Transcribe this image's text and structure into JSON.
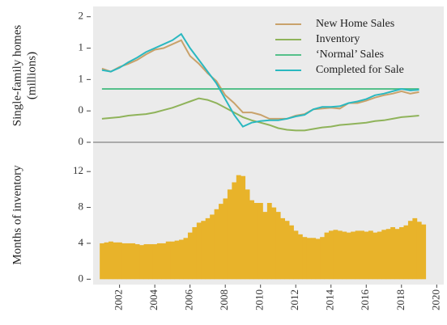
{
  "chart_data": [
    {
      "type": "line",
      "ylabel": [
        "Single-family homes",
        "(millions)"
      ],
      "legend": "top-right",
      "xlim": [
        2000.5,
        2020.4
      ],
      "ylim": [
        0,
        1.7
      ],
      "yticks": [
        {
          "value": 0,
          "label": "0"
        },
        {
          "value": 0.4,
          "label": "0"
        },
        {
          "value": 0.8,
          "label": "1"
        },
        {
          "value": 1.2,
          "label": "1"
        },
        {
          "value": 1.6,
          "label": "2"
        }
      ],
      "x": [
        2001,
        2001.5,
        2002,
        2002.5,
        2003,
        2003.5,
        2004,
        2004.5,
        2005,
        2005.5,
        2006,
        2006.5,
        2007,
        2007.5,
        2008,
        2008.5,
        2009,
        2009.5,
        2010,
        2010.5,
        2011,
        2011.5,
        2012,
        2012.5,
        2013,
        2013.5,
        2014,
        2014.5,
        2015,
        2015.5,
        2016,
        2016.5,
        2017,
        2017.5,
        2018,
        2018.5,
        2019
      ],
      "series": [
        {
          "name": "New Home Sales",
          "color": "#c9a26b",
          "values": [
            0.94,
            0.9,
            0.96,
            1.0,
            1.05,
            1.12,
            1.18,
            1.2,
            1.25,
            1.3,
            1.1,
            1.0,
            0.88,
            0.78,
            0.6,
            0.5,
            0.38,
            0.38,
            0.35,
            0.3,
            0.3,
            0.3,
            0.34,
            0.36,
            0.42,
            0.43,
            0.44,
            0.43,
            0.5,
            0.5,
            0.53,
            0.57,
            0.6,
            0.62,
            0.65,
            0.62,
            0.64
          ]
        },
        {
          "name": "Inventory",
          "color": "#8fb35a",
          "values": [
            0.3,
            0.31,
            0.32,
            0.34,
            0.35,
            0.36,
            0.38,
            0.41,
            0.44,
            0.48,
            0.52,
            0.56,
            0.54,
            0.5,
            0.44,
            0.38,
            0.32,
            0.28,
            0.25,
            0.22,
            0.18,
            0.16,
            0.15,
            0.15,
            0.17,
            0.19,
            0.2,
            0.22,
            0.23,
            0.24,
            0.25,
            0.27,
            0.28,
            0.3,
            0.32,
            0.33,
            0.34
          ]
        },
        {
          "name": "‘Normal’ Sales",
          "color": "#55c08a",
          "values": [
            0.68,
            0.68,
            0.68,
            0.68,
            0.68,
            0.68,
            0.68,
            0.68,
            0.68,
            0.68,
            0.68,
            0.68,
            0.68,
            0.68,
            0.68,
            0.68,
            0.68,
            0.68,
            0.68,
            0.68,
            0.68,
            0.68,
            0.68,
            0.68,
            0.68,
            0.68,
            0.68,
            0.68,
            0.68,
            0.68,
            0.68,
            0.68,
            0.68,
            0.68,
            0.68,
            0.68,
            0.68
          ]
        },
        {
          "name": "Completed for Sale",
          "color": "#2ab8c0",
          "values": [
            0.92,
            0.9,
            0.95,
            1.02,
            1.08,
            1.15,
            1.2,
            1.25,
            1.3,
            1.38,
            1.2,
            1.05,
            0.9,
            0.75,
            0.55,
            0.35,
            0.2,
            0.25,
            0.27,
            0.28,
            0.28,
            0.3,
            0.33,
            0.35,
            0.42,
            0.45,
            0.45,
            0.46,
            0.5,
            0.52,
            0.55,
            0.6,
            0.62,
            0.65,
            0.68,
            0.66,
            0.67
          ]
        }
      ]
    },
    {
      "type": "bar",
      "ylabel": [
        "Months of inventory"
      ],
      "color": "#e8b32a",
      "xlim": [
        2000.5,
        2020.4
      ],
      "xticks": [
        2002,
        2004,
        2006,
        2008,
        2010,
        2012,
        2014,
        2016,
        2018,
        2020
      ],
      "ylim": [
        -0.6,
        14.9
      ],
      "yticks": [
        0,
        4,
        8,
        12
      ],
      "x": [
        2001,
        2001.25,
        2001.5,
        2001.75,
        2002,
        2002.25,
        2002.5,
        2002.75,
        2003,
        2003.25,
        2003.5,
        2003.75,
        2004,
        2004.25,
        2004.5,
        2004.75,
        2005,
        2005.25,
        2005.5,
        2005.75,
        2006,
        2006.25,
        2006.5,
        2006.75,
        2007,
        2007.25,
        2007.5,
        2007.75,
        2008,
        2008.25,
        2008.5,
        2008.75,
        2009,
        2009.25,
        2009.5,
        2009.75,
        2010,
        2010.25,
        2010.5,
        2010.75,
        2011,
        2011.25,
        2011.5,
        2011.75,
        2012,
        2012.25,
        2012.5,
        2012.75,
        2013,
        2013.25,
        2013.5,
        2013.75,
        2014,
        2014.25,
        2014.5,
        2014.75,
        2015,
        2015.25,
        2015.5,
        2015.75,
        2016,
        2016.25,
        2016.5,
        2016.75,
        2017,
        2017.25,
        2017.5,
        2017.75,
        2018,
        2018.25,
        2018.5,
        2018.75,
        2019,
        2019.25
      ],
      "values": [
        4.0,
        4.1,
        4.2,
        4.1,
        4.1,
        4.0,
        4.0,
        4.0,
        3.9,
        3.8,
        3.9,
        3.9,
        3.9,
        4.0,
        4.0,
        4.2,
        4.2,
        4.3,
        4.4,
        4.6,
        5.2,
        5.8,
        6.3,
        6.5,
        6.8,
        7.2,
        7.8,
        8.4,
        9.0,
        10.0,
        10.8,
        11.6,
        11.5,
        10.0,
        8.8,
        8.5,
        8.5,
        7.5,
        8.5,
        8.0,
        7.5,
        6.8,
        6.5,
        6.0,
        5.4,
        5.0,
        4.7,
        4.6,
        4.6,
        4.5,
        4.7,
        5.2,
        5.4,
        5.5,
        5.4,
        5.3,
        5.2,
        5.3,
        5.4,
        5.4,
        5.3,
        5.4,
        5.2,
        5.3,
        5.5,
        5.6,
        5.8,
        5.6,
        5.8,
        6.0,
        6.5,
        6.8,
        6.4,
        6.1
      ]
    }
  ]
}
